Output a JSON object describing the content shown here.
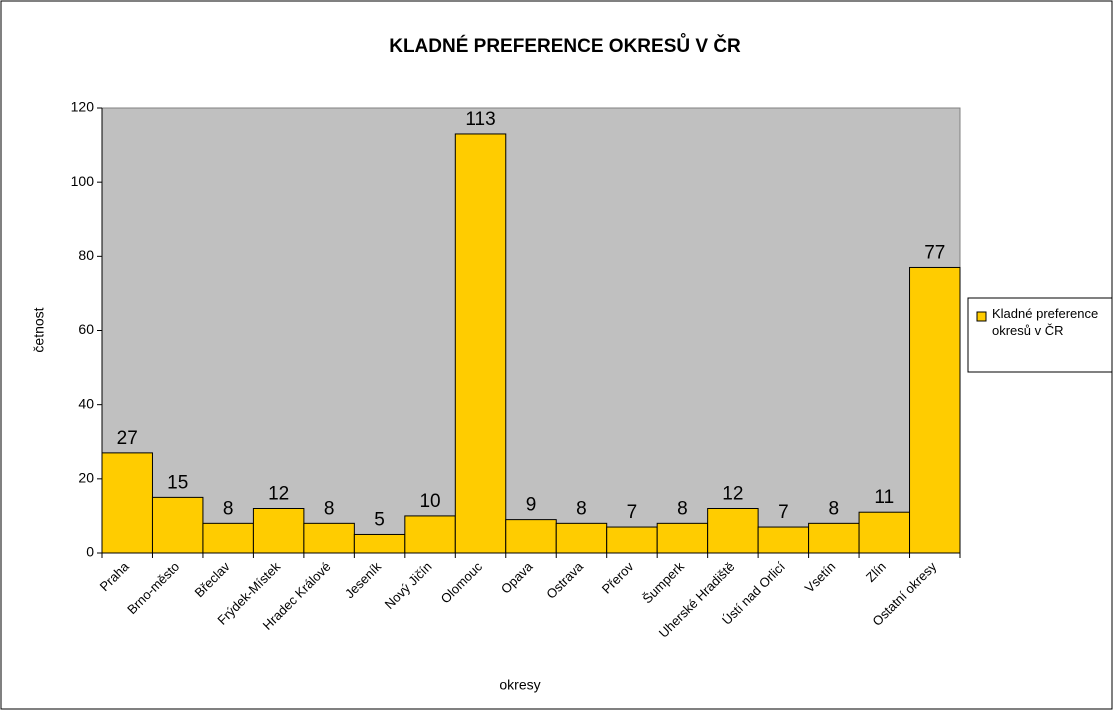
{
  "chart_data": {
    "type": "bar",
    "title": "KLADNÉ PREFERENCE OKRESŮ V ČR",
    "x_label": "okresy",
    "y_label": "četnost",
    "categories": [
      "Praha",
      "Brno-město",
      "Břeclav",
      "Frýdek-Místek",
      "Hradec Králové",
      "Jeseník",
      "Nový Jičín",
      "Olomouc",
      "Opava",
      "Ostrava",
      "Přerov",
      "Šumperk",
      "Uherské Hradiště",
      "Ústí nad Orlicí",
      "Vsetín",
      "Zlín",
      "Ostatní okresy"
    ],
    "series": [
      {
        "name": "Kladné preference okresů v ČR",
        "color": "#ffcc00",
        "values": [
          27,
          15,
          8,
          12,
          8,
          5,
          10,
          113,
          9,
          8,
          7,
          8,
          12,
          7,
          8,
          11,
          77
        ]
      }
    ],
    "ylim": [
      0,
      120
    ],
    "yticks": [
      0,
      20,
      40,
      60,
      80,
      100,
      120
    ],
    "plot_background": "#c0c0c0",
    "legend": "right"
  }
}
